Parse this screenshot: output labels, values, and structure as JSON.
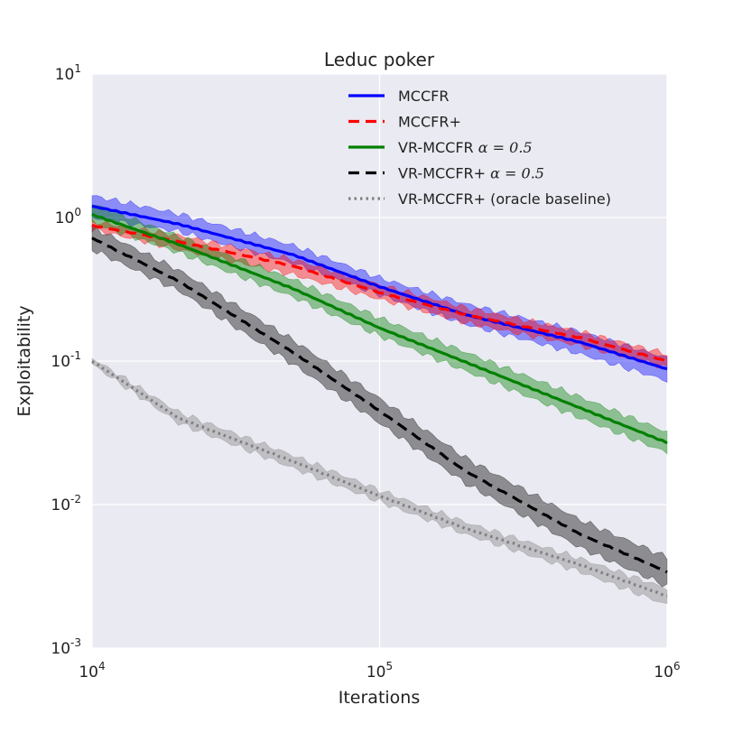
{
  "chart_data": {
    "type": "line",
    "title": "Leduc poker",
    "xlabel": "Iterations",
    "ylabel": "Exploitability",
    "xscale": "log",
    "yscale": "log",
    "xlim": [
      10000,
      1000000
    ],
    "ylim": [
      0.001,
      10
    ],
    "grid": true,
    "legend_position": "top-right",
    "x_ticks": [
      {
        "value": 10000,
        "base": "10",
        "exp": "4"
      },
      {
        "value": 100000,
        "base": "10",
        "exp": "5"
      },
      {
        "value": 1000000,
        "base": "10",
        "exp": "6"
      }
    ],
    "y_ticks": [
      {
        "value": 0.001,
        "base": "10",
        "exp": "-3"
      },
      {
        "value": 0.01,
        "base": "10",
        "exp": "-2"
      },
      {
        "value": 0.1,
        "base": "10",
        "exp": "-1"
      },
      {
        "value": 1,
        "base": "10",
        "exp": "0"
      },
      {
        "value": 10,
        "base": "10",
        "exp": "1"
      }
    ],
    "x": [
      10000,
      20000,
      50000,
      100000,
      200000,
      500000,
      1000000
    ],
    "series": [
      {
        "name": "MCCFR",
        "name_math": "",
        "color": "#0000ff",
        "dash": "solid",
        "values": [
          1.2,
          0.9,
          0.55,
          0.33,
          0.21,
          0.135,
          0.088
        ],
        "band_low": [
          1.0,
          0.8,
          0.48,
          0.29,
          0.18,
          0.112,
          0.073
        ],
        "band_high": [
          1.42,
          1.06,
          0.64,
          0.38,
          0.25,
          0.16,
          0.105
        ]
      },
      {
        "name": "MCCFR+",
        "name_math": "",
        "color": "#ff0000",
        "dash": "dashed",
        "values": [
          0.88,
          0.68,
          0.46,
          0.3,
          0.21,
          0.145,
          0.1
        ],
        "band_low": [
          0.83,
          0.6,
          0.4,
          0.27,
          0.185,
          0.128,
          0.09
        ],
        "band_high": [
          0.94,
          0.75,
          0.51,
          0.34,
          0.235,
          0.16,
          0.112
        ]
      },
      {
        "name": "VR-MCCFR ",
        "name_math": "α = 0.5",
        "color": "#008000",
        "dash": "solid",
        "values": [
          1.05,
          0.65,
          0.32,
          0.17,
          0.098,
          0.047,
          0.027
        ],
        "band_low": [
          0.92,
          0.57,
          0.28,
          0.15,
          0.085,
          0.04,
          0.023
        ],
        "band_high": [
          1.25,
          0.74,
          0.37,
          0.2,
          0.115,
          0.056,
          0.032
        ]
      },
      {
        "name": "VR-MCCFR+ ",
        "name_math": "α = 0.5",
        "color": "#000000",
        "dash": "dashed",
        "values": [
          0.72,
          0.36,
          0.115,
          0.045,
          0.017,
          0.0062,
          0.0034
        ],
        "band_low": [
          0.6,
          0.31,
          0.095,
          0.037,
          0.014,
          0.005,
          0.0027
        ],
        "band_high": [
          0.86,
          0.43,
          0.14,
          0.055,
          0.021,
          0.0078,
          0.0043
        ]
      },
      {
        "name": "VR-MCCFR+ (oracle baseline)",
        "name_math": "",
        "color": "#808080",
        "dash": "dotted",
        "values": [
          0.1,
          0.04,
          0.02,
          0.0115,
          0.0068,
          0.0038,
          0.0023
        ],
        "band_low": [
          0.095,
          0.037,
          0.018,
          0.0105,
          0.0062,
          0.0034,
          0.002
        ],
        "band_high": [
          0.105,
          0.044,
          0.022,
          0.0126,
          0.0075,
          0.0042,
          0.0026
        ]
      }
    ]
  }
}
